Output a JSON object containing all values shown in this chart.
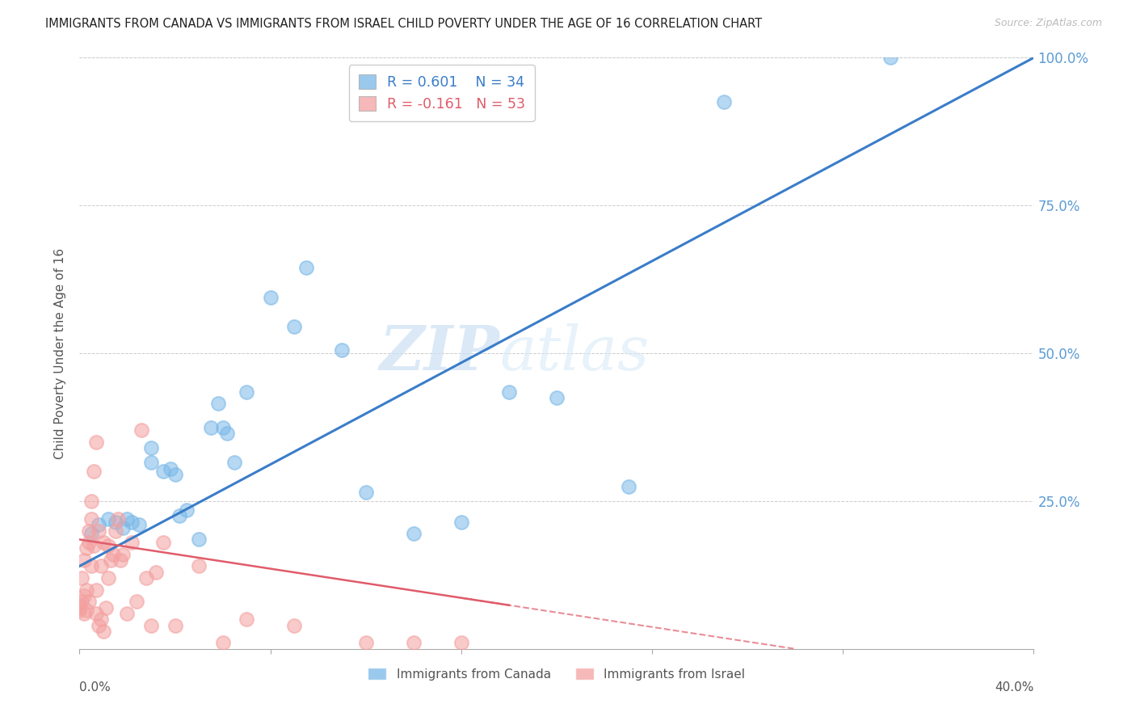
{
  "title": "IMMIGRANTS FROM CANADA VS IMMIGRANTS FROM ISRAEL CHILD POVERTY UNDER THE AGE OF 16 CORRELATION CHART",
  "source": "Source: ZipAtlas.com",
  "ylabel": "Child Poverty Under the Age of 16",
  "legend_canada": "Immigrants from Canada",
  "legend_israel": "Immigrants from Israel",
  "watermark_zip": "ZIP",
  "watermark_atlas": "atlas",
  "canada_color": "#7ab8e8",
  "israel_color": "#f4a0a0",
  "canada_line_color": "#3a7dc9",
  "israel_line_color": "#e05c6a",
  "background_color": "#ffffff",
  "grid_color": "#cccccc",
  "right_tick_color": "#5b9bd5",
  "canada_x": [
    0.005,
    0.008,
    0.012,
    0.015,
    0.018,
    0.02,
    0.022,
    0.025,
    0.03,
    0.03,
    0.035,
    0.038,
    0.04,
    0.042,
    0.045,
    0.05,
    0.055,
    0.058,
    0.06,
    0.062,
    0.065,
    0.07,
    0.08,
    0.09,
    0.095,
    0.11,
    0.12,
    0.14,
    0.16,
    0.18,
    0.2,
    0.23,
    0.27,
    0.34
  ],
  "canada_y": [
    0.195,
    0.21,
    0.22,
    0.215,
    0.205,
    0.22,
    0.215,
    0.21,
    0.34,
    0.315,
    0.3,
    0.305,
    0.295,
    0.225,
    0.235,
    0.185,
    0.375,
    0.415,
    0.375,
    0.365,
    0.315,
    0.435,
    0.595,
    0.545,
    0.645,
    0.505,
    0.265,
    0.195,
    0.215,
    0.435,
    0.425,
    0.275,
    0.925,
    1.0
  ],
  "israel_x": [
    0.0,
    0.0,
    0.0,
    0.001,
    0.001,
    0.002,
    0.002,
    0.002,
    0.003,
    0.003,
    0.003,
    0.004,
    0.004,
    0.004,
    0.005,
    0.005,
    0.005,
    0.006,
    0.006,
    0.007,
    0.007,
    0.007,
    0.008,
    0.008,
    0.009,
    0.009,
    0.01,
    0.01,
    0.011,
    0.012,
    0.012,
    0.013,
    0.014,
    0.015,
    0.016,
    0.017,
    0.018,
    0.02,
    0.022,
    0.024,
    0.026,
    0.028,
    0.03,
    0.032,
    0.035,
    0.04,
    0.05,
    0.06,
    0.07,
    0.09,
    0.12,
    0.14,
    0.16
  ],
  "israel_y": [
    0.065,
    0.07,
    0.075,
    0.08,
    0.12,
    0.06,
    0.09,
    0.15,
    0.065,
    0.17,
    0.1,
    0.18,
    0.2,
    0.08,
    0.22,
    0.25,
    0.14,
    0.3,
    0.175,
    0.35,
    0.1,
    0.06,
    0.04,
    0.2,
    0.05,
    0.14,
    0.03,
    0.18,
    0.07,
    0.12,
    0.175,
    0.15,
    0.16,
    0.2,
    0.22,
    0.15,
    0.16,
    0.06,
    0.18,
    0.08,
    0.37,
    0.12,
    0.04,
    0.13,
    0.18,
    0.04,
    0.14,
    0.01,
    0.05,
    0.04,
    0.01,
    0.01,
    0.01
  ],
  "xlim": [
    0.0,
    0.4
  ],
  "ylim": [
    0.0,
    1.0
  ],
  "canada_line_x0": 0.0,
  "canada_line_y0": 0.14,
  "canada_line_x1": 0.4,
  "canada_line_y1": 1.0,
  "israel_line_x0": 0.0,
  "israel_line_x1": 0.3,
  "israel_line_y0": 0.185,
  "israel_line_y1": 0.0
}
